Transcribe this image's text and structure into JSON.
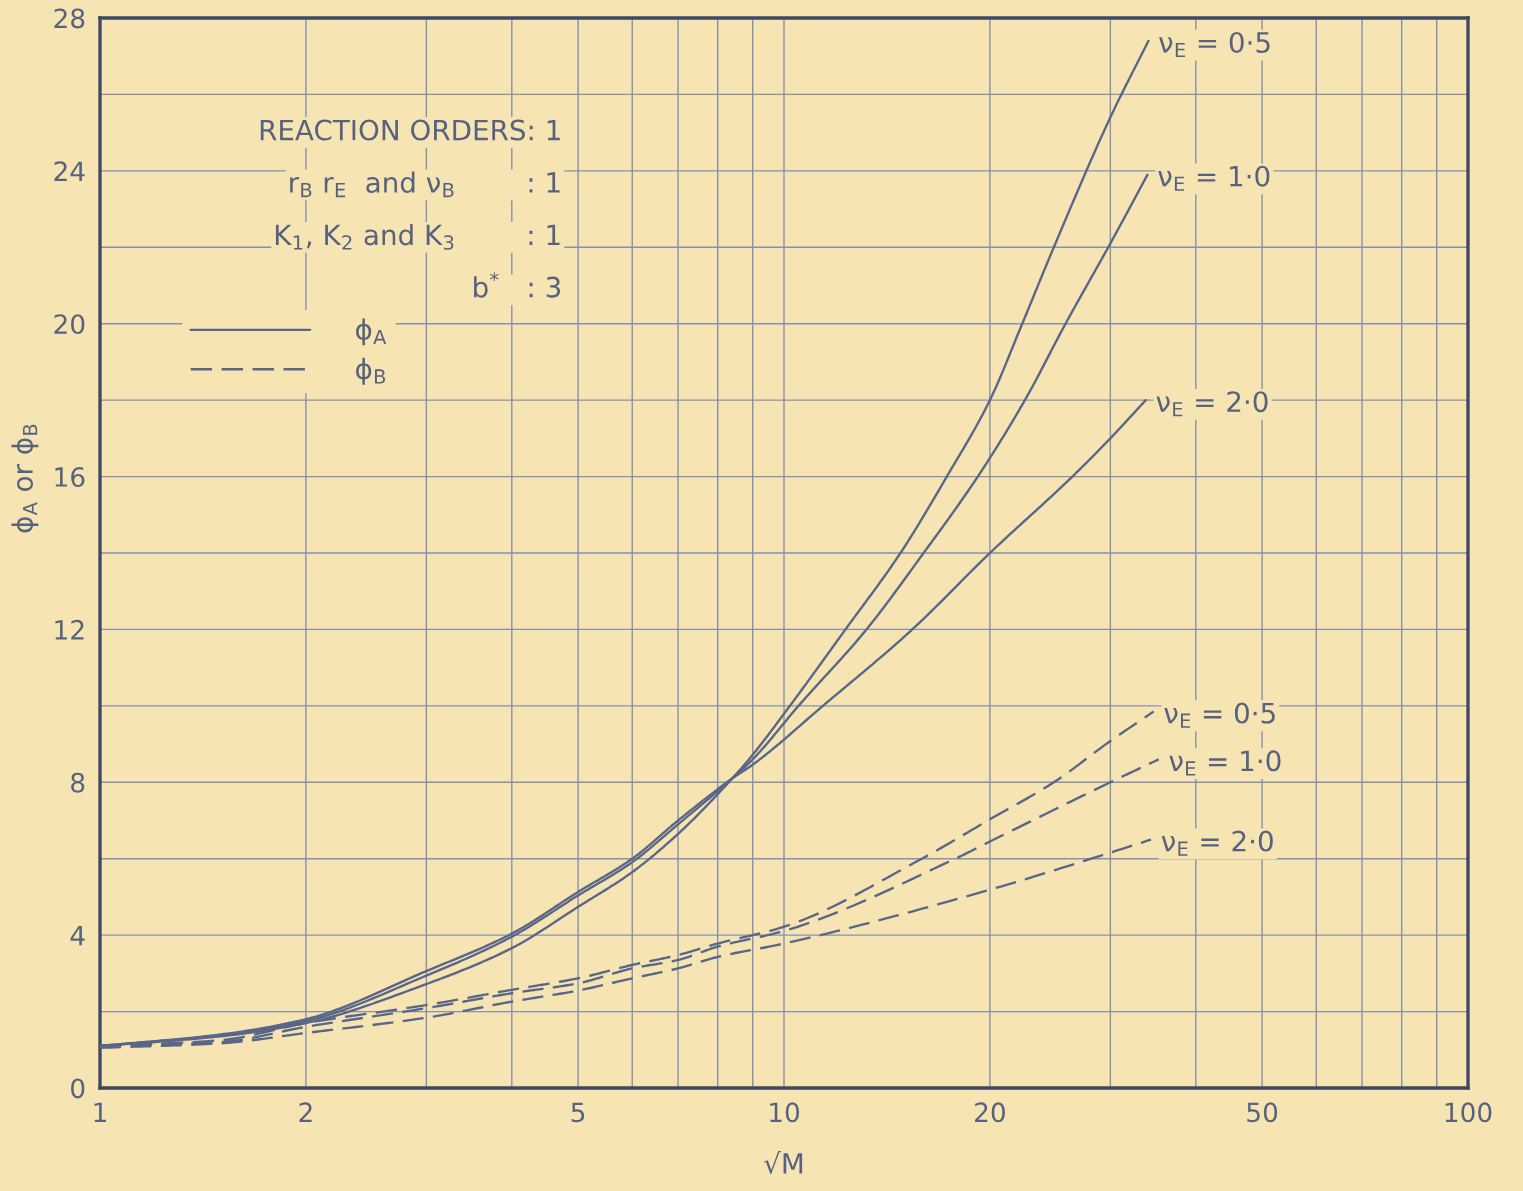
{
  "chart_data": {
    "type": "line",
    "xlabel": "√M",
    "ylabel": "ϕ$_{A}$ or ϕ$_{B}$",
    "annotations": [
      "REACTION ORDERS: 1",
      "r$_{B}$ r$_{E}$  and ν$_{B}$        : 1",
      "K$_{1}$, K$_{2}$ and K$_{3}$        : 1",
      "b$^{*}$   : 3",
      {
        "text": "ν$_{E}$ = 0·5",
        "x": 34.1,
        "y": 27.4
      },
      {
        "text": "ν$_{E}$ = 1·0",
        "x": 34,
        "y": 23.9
      },
      {
        "text": "ν$_{E}$ = 2·0",
        "x": 33.8,
        "y": 18
      },
      {
        "text": "ν$_{E}$ = 0·5",
        "x": 34.7,
        "y": 9.85
      },
      {
        "text": "ν$_{E}$ = 1·0",
        "x": 35.3,
        "y": 8.6
      },
      {
        "text": "ν$_{E}$ = 2·0",
        "x": 34.4,
        "y": 6.5
      }
    ],
    "log": "x",
    "xlim": [
      1,
      100
    ],
    "ylim": [
      0,
      28
    ],
    "xticks": [
      1,
      2,
      {
        "value": 3,
        "label": null
      },
      {
        "value": 4,
        "label": null
      },
      5,
      {
        "value": 6,
        "label": null
      },
      {
        "value": 7,
        "label": null
      },
      {
        "value": 8,
        "label": null
      },
      {
        "value": 9,
        "label": null
      },
      10,
      20,
      {
        "value": 30,
        "label": null
      },
      {
        "value": 40,
        "label": null
      },
      50,
      {
        "value": 60,
        "label": null
      },
      {
        "value": 70,
        "label": null
      },
      {
        "value": 80,
        "label": null
      },
      {
        "value": 90,
        "label": null
      },
      100
    ],
    "yticks": [
      0,
      {
        "value": 2,
        "label": null
      },
      4,
      {
        "value": 6,
        "label": null
      },
      8,
      {
        "value": 10,
        "label": null
      },
      12,
      {
        "value": 14,
        "label": null
      },
      16,
      {
        "value": 18,
        "label": null
      },
      20,
      {
        "value": 22,
        "label": null
      },
      24,
      {
        "value": 26,
        "label": null
      },
      28
    ],
    "grid": true,
    "legend": "top left",
    "series": [
      {
        "name": "ϕ$_{A}$",
        "color": "#5a6688",
        "line_style": "solid",
        "x": [
          1,
          1.5,
          2,
          3,
          4,
          5,
          6,
          7,
          8.4,
          9,
          10.2,
          12.3,
          14.8,
          17.3,
          20,
          22.3,
          24.8,
          30,
          34.1
        ],
        "values": [
          1.1,
          1.35,
          1.7,
          2.72,
          3.66,
          4.74,
          5.65,
          6.65,
          8.1,
          8.72,
          10,
          12,
          14,
          16,
          18,
          20,
          22,
          25.4,
          27.4
        ]
      },
      {
        "color": "#5a6688",
        "line_style": "solid",
        "x": [
          1,
          1.5,
          2,
          3,
          4,
          5,
          6,
          7,
          8.4,
          9,
          10.5,
          13.2,
          16,
          19.2,
          22.5,
          25.8,
          30,
          34
        ],
        "values": [
          1.1,
          1.38,
          1.75,
          2.94,
          3.96,
          5.04,
          5.91,
          6.9,
          8.1,
          8.6,
          10,
          12,
          14,
          16,
          18,
          20,
          22.1,
          23.9
        ]
      },
      {
        "color": "#5a6688",
        "line_style": "solid",
        "x": [
          1,
          1.5,
          2,
          3,
          4,
          5,
          6,
          7,
          8.4,
          9,
          11.4,
          15.4,
          20,
          26.4,
          30,
          33.8
        ],
        "values": [
          1.1,
          1.4,
          1.8,
          3.06,
          4.04,
          5.13,
          6.0,
          7.0,
          8.1,
          8.46,
          10,
          12,
          14,
          16,
          17.0,
          18
        ]
      },
      {
        "name": "ϕ$_{B}$",
        "color": "#5a6688",
        "line_style": "dashed",
        "x": [
          1,
          1.5,
          2,
          3,
          4,
          5,
          6,
          7,
          8,
          10,
          15.9,
          20,
          24.8,
          30,
          34.7
        ],
        "values": [
          1.1,
          1.25,
          1.7,
          2.17,
          2.57,
          2.87,
          3.22,
          3.48,
          3.78,
          4.22,
          6,
          7.03,
          8,
          9.08,
          9.85
        ]
      },
      {
        "color": "#5a6688",
        "line_style": "dashed",
        "x": [
          1,
          1.5,
          2,
          3,
          4,
          5,
          6,
          7,
          8,
          10,
          17.8,
          20,
          30,
          35.3
        ],
        "values": [
          1.1,
          1.2,
          1.6,
          2.09,
          2.48,
          2.74,
          3.13,
          3.35,
          3.7,
          4.11,
          6,
          6.45,
          8.0,
          8.6
        ]
      },
      {
        "color": "#5a6688",
        "line_style": "dashed",
        "x": [
          1,
          1.5,
          2,
          3,
          4,
          5,
          6,
          7,
          8,
          10,
          20,
          30,
          34.4
        ],
        "values": [
          1.05,
          1.17,
          1.44,
          1.84,
          2.26,
          2.55,
          2.87,
          3.13,
          3.43,
          3.78,
          5.19,
          6.16,
          6.5
        ]
      }
    ]
  }
}
